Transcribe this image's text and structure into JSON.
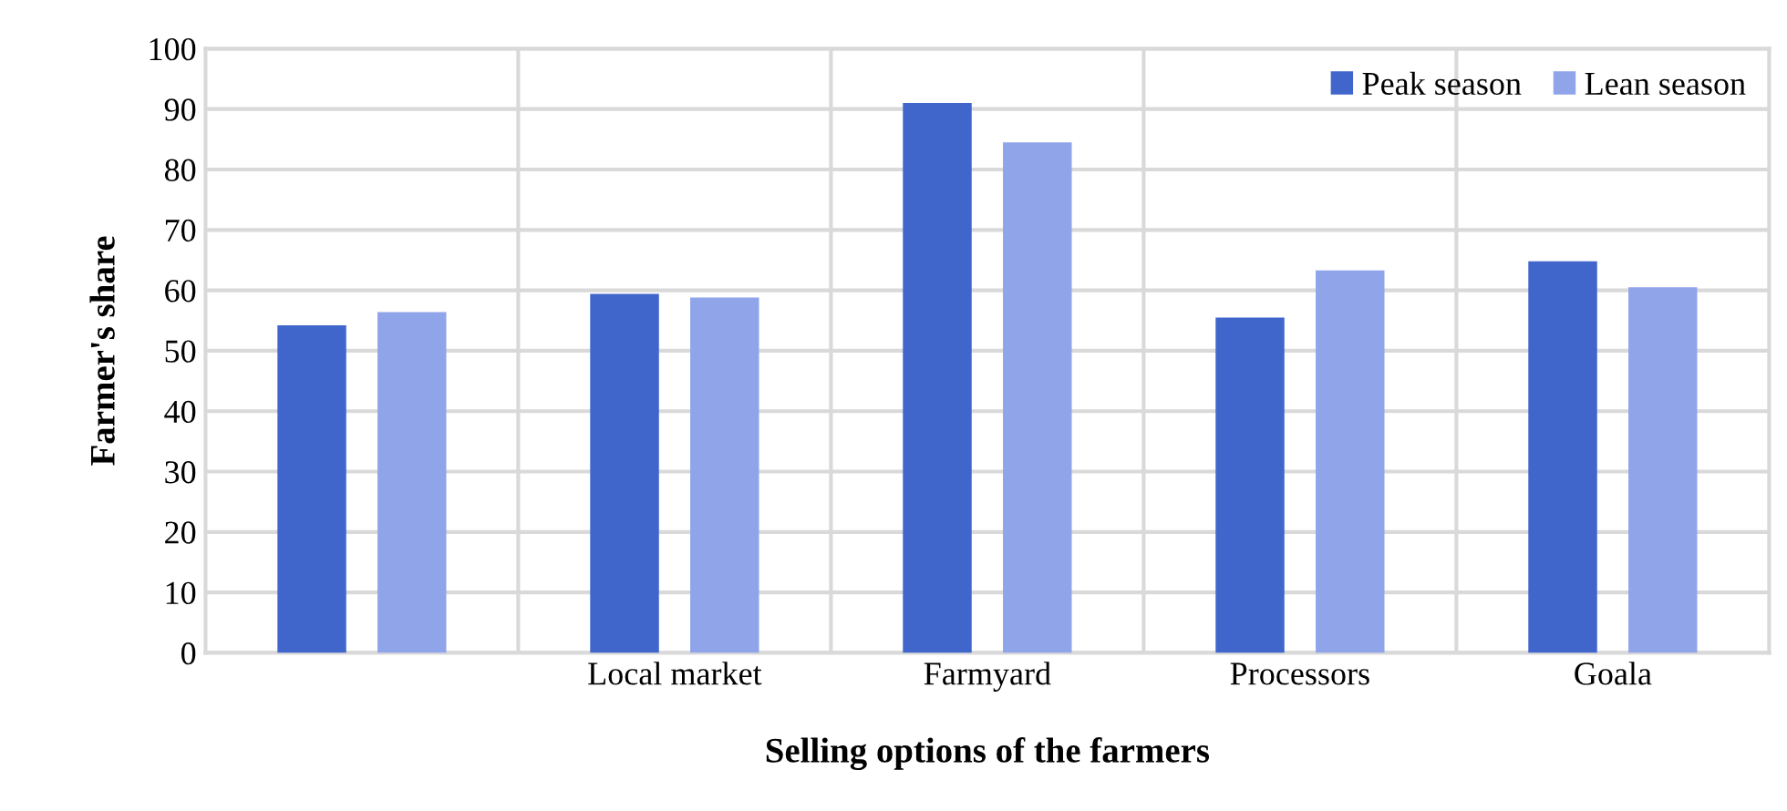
{
  "chart_data": {
    "type": "bar",
    "xlabel": "Selling options of the farmers",
    "ylabel": "Farmer's share",
    "categories": [
      null,
      "Local market",
      "Farmyard",
      "Processors",
      "Goala"
    ],
    "series": [
      {
        "name": "Peak season",
        "color": "#4066cc",
        "values": [
          54.2,
          59.4,
          91,
          55.5,
          64.8
        ]
      },
      {
        "name": "Lean season",
        "color": "#90a4ea",
        "values": [
          56.4,
          58.8,
          84.5,
          63.3,
          60.5
        ]
      }
    ],
    "ylim": [
      0,
      100
    ],
    "yticks": [
      0,
      10,
      20,
      30,
      40,
      50,
      60,
      70,
      80,
      90,
      100
    ],
    "grid": true,
    "legend": "top right"
  }
}
